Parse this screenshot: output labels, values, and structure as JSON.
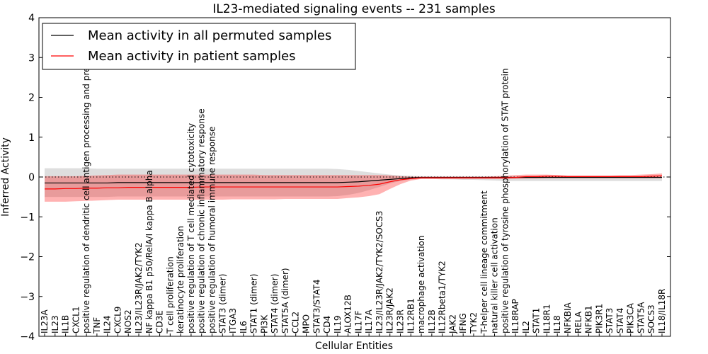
{
  "chart_data": {
    "type": "line",
    "title": "IL23-mediated signaling events -- 231 samples",
    "xlabel": "Cellular Entities",
    "ylabel": "Inferred Activity",
    "ylim": [
      -4,
      4
    ],
    "yticks": [
      "4",
      "3",
      "2",
      "1",
      "0",
      "−1",
      "−2",
      "−3",
      "−4"
    ],
    "legend": {
      "placement": "top-left",
      "items": [
        {
          "label": "Mean activity in all permuted samples",
          "color": "#000000"
        },
        {
          "label": "Mean activity in patient samples",
          "color": "#ff0000"
        }
      ]
    },
    "categories": [
      "IL23A",
      "IL23",
      "IL1B",
      "CXCL1",
      "positive regulation of dendritic cell antigen processing and presentation",
      "TNF",
      "IL24",
      "CXCL9",
      "NOS2",
      "IL23/IL23R/JAK2/TYK2",
      "NF kappa B1 p50/RelA/I kappa B alpha",
      "CD3E",
      "T cell proliferation",
      "keratinocyte proliferation",
      "positive regulation of T cell mediated cytotoxicity",
      "positive regulation of chronic inflammatory response",
      "positive regulation of humoral immune response",
      "STAT3 (dimer)",
      "ITGA3",
      "IL6",
      "STAT1 (dimer)",
      "PI3K",
      "STAT4 (dimer)",
      "STAT5A (dimer)",
      "CCL2",
      "MPO",
      "STAT3/STAT4",
      "CD4",
      "IL19",
      "ALOX12B",
      "IL17F",
      "IL17A",
      "IL23/IL23R/JAK2/TYK2/SOCS3",
      "IL23R/JAK2",
      "IL23R",
      "IL12RB1",
      "macrophage activation",
      "IL12B",
      "IL12Rbeta1/TYK2",
      "JAK2",
      "IFNG",
      "TYK2",
      "T-helper cell lineage commitment",
      "natural killer cell activation",
      "positive regulation of tyrosine phosphorylation of STAT protein",
      "IL18RAP",
      "IL2",
      "STAT1",
      "IL18R1",
      "IL18",
      "NFKBIA",
      "RELA",
      "NFKB1",
      "PIK3R1",
      "STAT3",
      "STAT4",
      "PIK3CA",
      "STAT5A",
      "SOCS3",
      "IL18/IL18R"
    ],
    "series": [
      {
        "name": "Mean activity in all permuted samples",
        "color": "#000000",
        "values": [
          -0.15,
          -0.15,
          -0.15,
          -0.15,
          -0.15,
          -0.15,
          -0.15,
          -0.14,
          -0.14,
          -0.14,
          -0.14,
          -0.14,
          -0.14,
          -0.14,
          -0.14,
          -0.14,
          -0.14,
          -0.14,
          -0.14,
          -0.14,
          -0.14,
          -0.14,
          -0.14,
          -0.14,
          -0.14,
          -0.14,
          -0.14,
          -0.14,
          -0.14,
          -0.13,
          -0.12,
          -0.1,
          -0.08,
          -0.06,
          -0.04,
          -0.02,
          -0.01,
          -0.01,
          -0.01,
          -0.01,
          -0.01,
          -0.01,
          -0.01,
          -0.01,
          -0.01,
          -0.01,
          -0.01,
          -0.01,
          -0.01,
          -0.01,
          -0.01,
          -0.01,
          -0.01,
          -0.01,
          -0.01,
          -0.01,
          -0.01,
          -0.01,
          -0.01,
          -0.01
        ],
        "band_upper": [
          0.22,
          0.22,
          0.22,
          0.22,
          0.22,
          0.21,
          0.21,
          0.21,
          0.21,
          0.21,
          0.21,
          0.21,
          0.21,
          0.21,
          0.21,
          0.21,
          0.21,
          0.21,
          0.21,
          0.21,
          0.21,
          0.21,
          0.21,
          0.21,
          0.21,
          0.21,
          0.21,
          0.21,
          0.2,
          0.18,
          0.15,
          0.12,
          0.09,
          0.06,
          0.04,
          0.03,
          0.02,
          0.02,
          0.02,
          0.02,
          0.02,
          0.02,
          0.02,
          0.02,
          0.02,
          0.02,
          0.02,
          0.02,
          0.02,
          0.02,
          0.02,
          0.02,
          0.02,
          0.02,
          0.02,
          0.02,
          0.02,
          0.02,
          0.02,
          0.02
        ],
        "band_lower": [
          -0.5,
          -0.5,
          -0.5,
          -0.5,
          -0.5,
          -0.5,
          -0.5,
          -0.49,
          -0.49,
          -0.49,
          -0.49,
          -0.49,
          -0.49,
          -0.49,
          -0.49,
          -0.49,
          -0.49,
          -0.49,
          -0.49,
          -0.49,
          -0.49,
          -0.49,
          -0.49,
          -0.49,
          -0.49,
          -0.49,
          -0.49,
          -0.49,
          -0.48,
          -0.45,
          -0.4,
          -0.33,
          -0.25,
          -0.16,
          -0.1,
          -0.06,
          -0.05,
          -0.05,
          -0.06,
          -0.06,
          -0.07,
          -0.07,
          -0.08,
          -0.09,
          -0.1,
          -0.1,
          -0.1,
          -0.1,
          -0.1,
          -0.1,
          -0.1,
          -0.1,
          -0.1,
          -0.1,
          -0.1,
          -0.1,
          -0.1,
          -0.1,
          -0.1,
          -0.1
        ]
      },
      {
        "name": "Mean activity in patient samples",
        "color": "#ff0000",
        "values": [
          -0.3,
          -0.3,
          -0.29,
          -0.29,
          -0.28,
          -0.28,
          -0.27,
          -0.27,
          -0.26,
          -0.26,
          -0.26,
          -0.26,
          -0.26,
          -0.26,
          -0.26,
          -0.25,
          -0.25,
          -0.25,
          -0.25,
          -0.25,
          -0.25,
          -0.25,
          -0.25,
          -0.25,
          -0.25,
          -0.25,
          -0.25,
          -0.25,
          -0.25,
          -0.24,
          -0.23,
          -0.21,
          -0.18,
          -0.12,
          -0.07,
          -0.04,
          -0.02,
          -0.02,
          -0.02,
          -0.02,
          -0.02,
          -0.02,
          -0.02,
          -0.02,
          -0.02,
          -0.01,
          0.01,
          0.01,
          0.02,
          0.02,
          0.01,
          0.01,
          0.01,
          0.01,
          0.01,
          0.01,
          0.01,
          0.01,
          0.02,
          0.03
        ],
        "band_upper": [
          0.02,
          0.02,
          0.02,
          0.02,
          0.03,
          0.04,
          0.05,
          0.06,
          0.06,
          0.06,
          0.06,
          0.06,
          0.06,
          0.06,
          0.06,
          0.06,
          0.06,
          0.06,
          0.06,
          0.06,
          0.06,
          0.05,
          0.05,
          0.05,
          0.05,
          0.05,
          0.05,
          0.05,
          0.05,
          0.05,
          0.05,
          0.05,
          0.05,
          0.04,
          0.02,
          0.01,
          0.01,
          0.01,
          0.01,
          0.01,
          0.01,
          0.01,
          0.01,
          0.02,
          0.03,
          0.05,
          0.06,
          0.06,
          0.06,
          0.05,
          0.04,
          0.04,
          0.04,
          0.04,
          0.04,
          0.05,
          0.05,
          0.06,
          0.07,
          0.09
        ],
        "band_lower": [
          -0.62,
          -0.62,
          -0.62,
          -0.61,
          -0.6,
          -0.59,
          -0.58,
          -0.57,
          -0.57,
          -0.57,
          -0.57,
          -0.57,
          -0.57,
          -0.57,
          -0.57,
          -0.57,
          -0.57,
          -0.57,
          -0.56,
          -0.56,
          -0.56,
          -0.56,
          -0.56,
          -0.55,
          -0.55,
          -0.55,
          -0.55,
          -0.55,
          -0.55,
          -0.53,
          -0.51,
          -0.48,
          -0.43,
          -0.3,
          -0.18,
          -0.09,
          -0.05,
          -0.05,
          -0.05,
          -0.05,
          -0.05,
          -0.05,
          -0.05,
          -0.05,
          -0.05,
          -0.05,
          -0.04,
          -0.04,
          -0.03,
          -0.03,
          -0.03,
          -0.03,
          -0.03,
          -0.03,
          -0.03,
          -0.03,
          -0.03,
          -0.03,
          -0.03,
          -0.03
        ]
      }
    ]
  }
}
